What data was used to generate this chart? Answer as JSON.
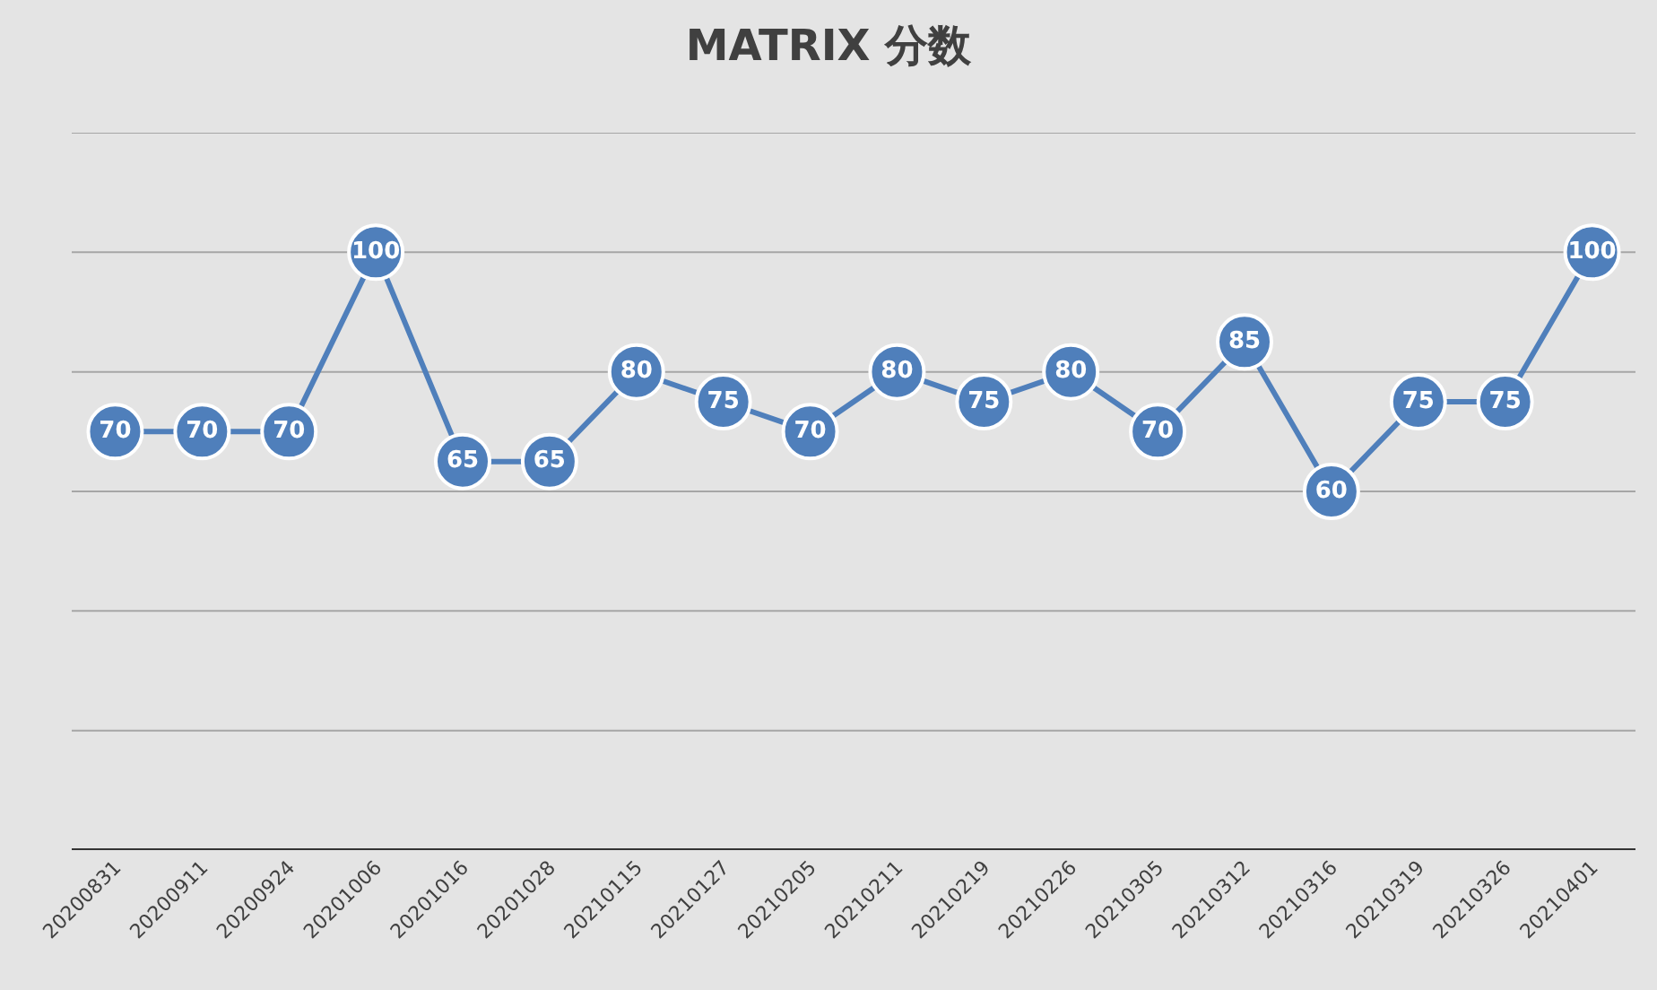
{
  "chart_data": {
    "type": "line",
    "title": "MATRIX 分数",
    "categories": [
      "20200831",
      "20200911",
      "20200924",
      "20201006",
      "20201016",
      "20201028",
      "20210115",
      "20210127",
      "20210205",
      "20210211",
      "20210219",
      "20210226",
      "20210305",
      "20210312",
      "20210316",
      "20210319",
      "20210326",
      "20210401"
    ],
    "series": [
      {
        "color": "#4f7fbb",
        "values": [
          70,
          70,
          70,
          100,
          65,
          65,
          80,
          75,
          70,
          80,
          75,
          80,
          70,
          85,
          60,
          75,
          75,
          100
        ]
      }
    ],
    "ylim": [
      0,
      120
    ],
    "yticks": [
      {
        "value": 0,
        "label": null
      },
      {
        "value": 20,
        "label": null
      },
      {
        "value": 40,
        "label": null
      },
      {
        "value": 60,
        "label": null
      },
      {
        "value": 80,
        "label": null
      },
      {
        "value": 100,
        "label": null
      },
      {
        "value": 120,
        "label": null
      }
    ],
    "grid": "y",
    "tick_labels": "x",
    "marker": "circle",
    "line_style": "solid",
    "data_labels": true
  }
}
